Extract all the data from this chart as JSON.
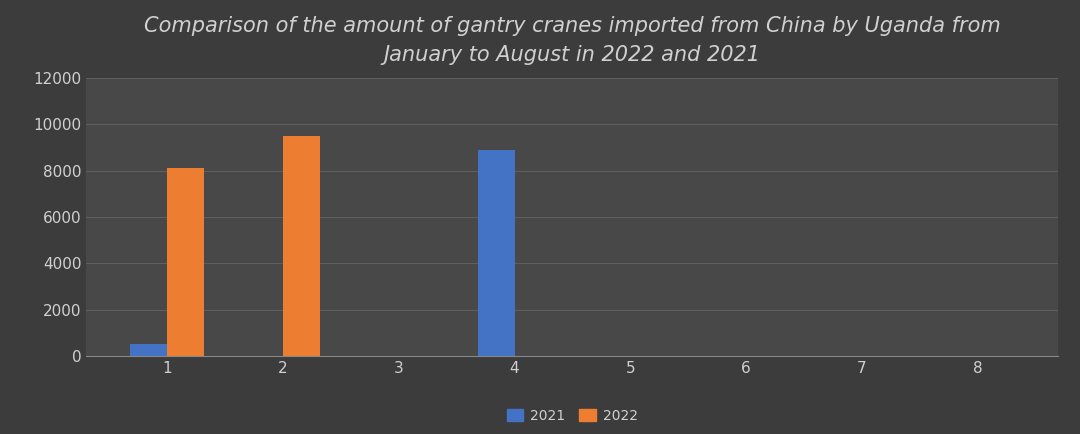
{
  "title": "Comparison of the amount of gantry cranes imported from China by Uganda from\nJanuary to August in 2022 and 2021",
  "categories": [
    1,
    2,
    3,
    4,
    5,
    6,
    7,
    8
  ],
  "values_2021": [
    500,
    0,
    0,
    8900,
    0,
    0,
    0,
    0
  ],
  "values_2022": [
    8100,
    9500,
    0,
    0,
    0,
    0,
    0,
    0
  ],
  "color_2021": "#4472C4",
  "color_2022": "#ED7D31",
  "background_color": "#3C3C3C",
  "plot_bg_color": "#484848",
  "text_color": "#D0D0D0",
  "grid_color": "#606060",
  "axis_line_color": "#888888",
  "ylim": [
    0,
    12000
  ],
  "yticks": [
    0,
    2000,
    4000,
    6000,
    8000,
    10000,
    12000
  ],
  "bar_width": 0.32,
  "legend_labels": [
    "2021",
    "2022"
  ],
  "title_fontsize": 15,
  "tick_fontsize": 11,
  "legend_fontsize": 10
}
